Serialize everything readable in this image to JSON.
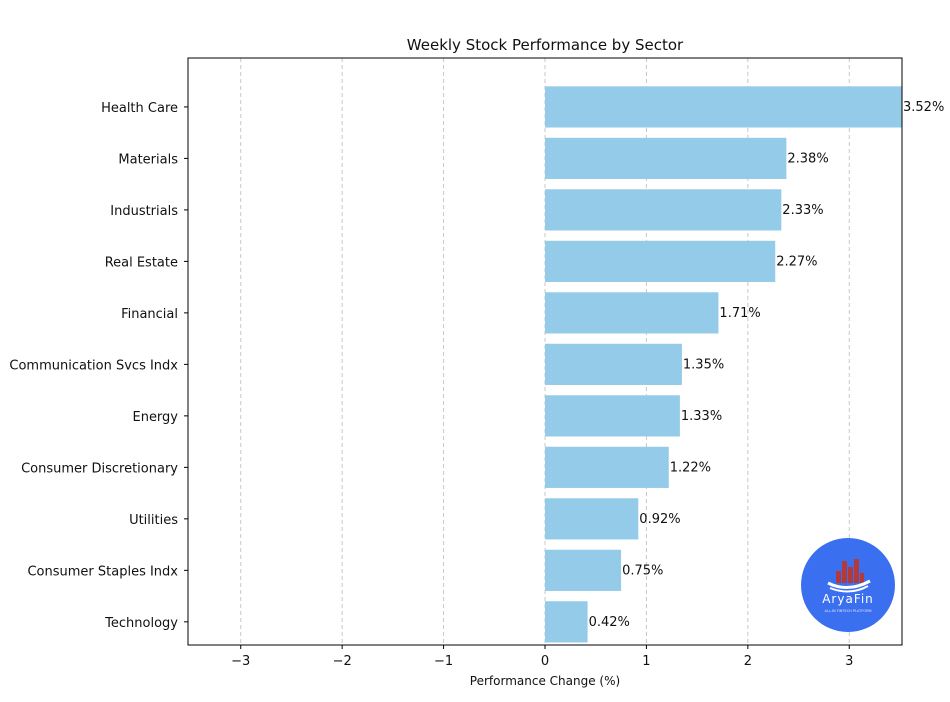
{
  "chart_data": {
    "type": "bar",
    "orientation": "horizontal",
    "title": "Weekly Stock Performance by Sector",
    "xlabel": "Performance Change (%)",
    "ylabel": "",
    "categories": [
      "Health Care",
      "Materials",
      "Industrials",
      "Real Estate",
      "Financial",
      "Communication Svcs Indx",
      "Energy",
      "Consumer Discretionary",
      "Utilities",
      "Consumer Staples Indx",
      "Technology"
    ],
    "values": [
      3.52,
      2.38,
      2.33,
      2.27,
      1.71,
      1.35,
      1.33,
      1.22,
      0.92,
      0.75,
      0.42
    ],
    "value_labels": [
      "3.52%",
      "2.38%",
      "2.33%",
      "2.27%",
      "1.71%",
      "1.35%",
      "1.33%",
      "1.22%",
      "0.92%",
      "0.75%",
      "0.42%"
    ],
    "xlim": [
      -3.52,
      3.52
    ],
    "xticks": [
      -3,
      -2,
      -1,
      0,
      1,
      2,
      3
    ],
    "xtick_labels": [
      "−3",
      "−2",
      "−1",
      "0",
      "1",
      "2",
      "3"
    ],
    "grid": "x dashed",
    "bar_color": "#94cbe8",
    "grid_color": "#c8c8c8"
  },
  "logo": {
    "text": "AryaFin",
    "tagline": "ALL-IN FINTECH PLATFORM",
    "circle_color": "#3a6ff0",
    "bars_color": "#b23a3a"
  }
}
